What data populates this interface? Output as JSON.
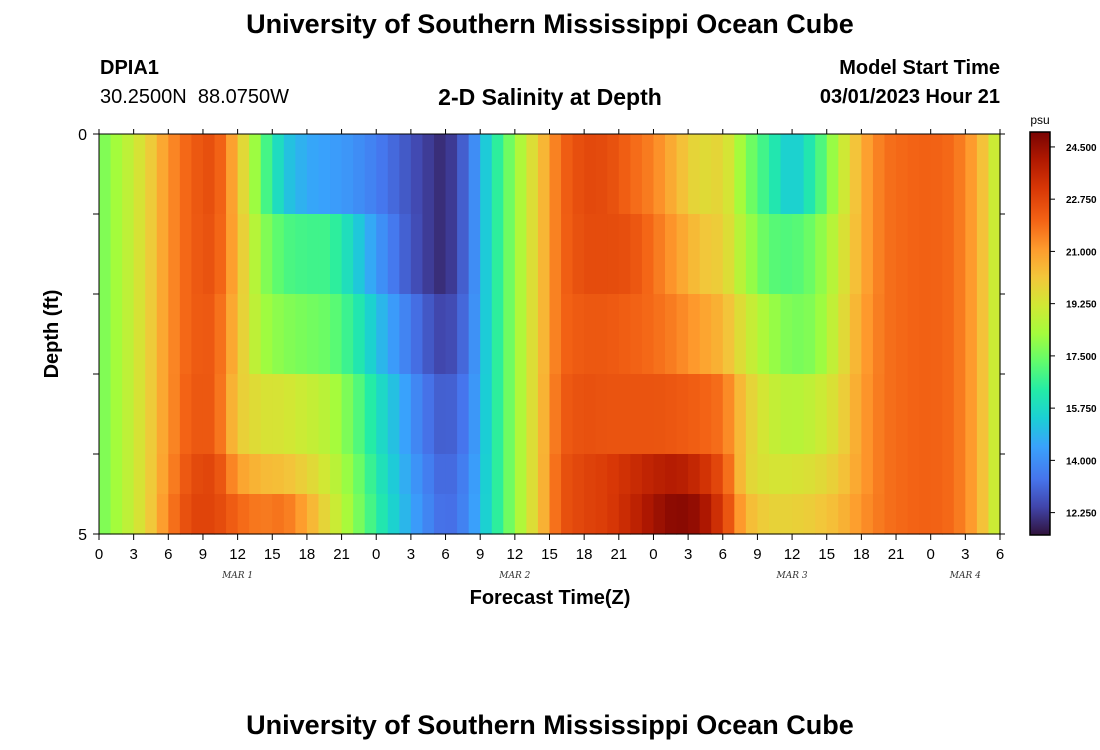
{
  "header": {
    "title": "University of Southern Mississippi Ocean Cube",
    "station_id": "DPIA1",
    "coords": "30.2500N  88.0750W",
    "chart_title": "2-D Salinity at Depth",
    "model_label": "Model Start Time",
    "model_time": "03/01/2023 Hour 21"
  },
  "footer": {
    "title": "University of Southern Mississippi Ocean Cube"
  },
  "chart_data": {
    "type": "heatmap",
    "title": "2-D Salinity at Depth",
    "xlabel": "Forecast Time(Z)",
    "ylabel": "Depth (ft)",
    "x_tick_labels": [
      "0",
      "3",
      "6",
      "9",
      "12",
      "15",
      "18",
      "21",
      "0",
      "3",
      "6",
      "9",
      "12",
      "15",
      "18",
      "21",
      "0",
      "3",
      "6",
      "9",
      "12",
      "15",
      "18",
      "21",
      "0",
      "3",
      "6"
    ],
    "x_tick_hours": [
      0,
      3,
      6,
      9,
      12,
      15,
      18,
      21,
      24,
      27,
      30,
      33,
      36,
      39,
      42,
      45,
      48,
      51,
      54,
      57,
      60,
      63,
      66,
      69,
      72,
      75,
      78
    ],
    "month_labels": [
      {
        "text": "MAR 1",
        "hour": 12
      },
      {
        "text": "MAR 2",
        "hour": 36
      },
      {
        "text": "MAR 3",
        "hour": 60
      },
      {
        "text": "MAR 4",
        "hour": 75
      }
    ],
    "y_tick_labels": [
      "0",
      "5"
    ],
    "depth_range": [
      0,
      5
    ],
    "hours_range": [
      0,
      78
    ],
    "colorbar": {
      "unit": "psu",
      "min": 11.5,
      "max": 25.0,
      "ticks": [
        "24.500",
        "22.750",
        "21.000",
        "19.250",
        "17.500",
        "15.750",
        "14.000",
        "12.250"
      ],
      "tick_values": [
        24.5,
        22.75,
        21.0,
        19.25,
        17.5,
        15.75,
        14.0,
        12.25
      ]
    },
    "layer_depths": [
      0.25,
      1.25,
      2.25,
      3.25,
      4.25,
      4.75
    ],
    "key_hours": [
      0,
      2,
      4,
      6,
      8,
      10,
      12,
      14,
      16,
      18,
      20,
      22,
      24,
      26,
      28,
      30,
      32,
      34,
      36,
      38,
      40,
      42,
      44,
      46,
      48,
      50,
      52,
      54,
      56,
      58,
      60,
      62,
      64,
      66,
      68,
      70,
      72,
      74,
      76,
      78
    ],
    "layers": [
      [
        17.5,
        18.5,
        19.6,
        21.2,
        22.2,
        22.6,
        20.4,
        17.4,
        15.3,
        14.6,
        14.4,
        14.1,
        13.6,
        13.0,
        12.4,
        11.9,
        13.3,
        16.0,
        18.0,
        20.0,
        22.0,
        22.7,
        22.6,
        22.0,
        21.5,
        20.5,
        19.5,
        19.8,
        17.8,
        16.5,
        15.2,
        16.5,
        18.6,
        20.7,
        21.8,
        22.0,
        22.1,
        21.9,
        20.8,
        18.5
      ],
      [
        17.5,
        18.5,
        19.6,
        21.2,
        22.2,
        22.5,
        20.5,
        18.0,
        17.0,
        16.8,
        16.8,
        15.6,
        14.3,
        13.2,
        12.4,
        11.9,
        13.3,
        16.0,
        18.0,
        20.0,
        22.0,
        22.6,
        22.6,
        22.5,
        21.8,
        21.0,
        20.2,
        19.9,
        18.3,
        17.2,
        17.0,
        17.6,
        19.0,
        20.7,
        21.8,
        22.0,
        22.1,
        21.9,
        20.8,
        18.5
      ],
      [
        17.5,
        18.5,
        19.6,
        21.2,
        22.2,
        22.3,
        20.3,
        18.3,
        17.8,
        17.6,
        17.4,
        16.5,
        15.2,
        14.0,
        13.0,
        12.3,
        13.4,
        16.0,
        18.0,
        20.0,
        22.0,
        22.3,
        22.3,
        22.1,
        21.9,
        21.5,
        21.0,
        20.5,
        19.2,
        18.2,
        17.6,
        17.8,
        19.2,
        20.9,
        21.8,
        22.0,
        22.1,
        21.9,
        20.8,
        18.5
      ],
      [
        17.5,
        18.5,
        19.6,
        21.2,
        22.3,
        22.3,
        20.0,
        19.4,
        19.3,
        19.0,
        18.6,
        17.4,
        16.0,
        14.8,
        13.5,
        12.8,
        13.6,
        16.0,
        18.0,
        20.0,
        22.2,
        22.5,
        22.4,
        22.4,
        22.4,
        22.3,
        22.1,
        21.8,
        20.0,
        19.0,
        18.6,
        18.9,
        19.6,
        21.0,
        21.8,
        22.0,
        22.1,
        21.9,
        20.8,
        18.5
      ],
      [
        17.5,
        18.5,
        19.6,
        21.3,
        22.6,
        22.8,
        21.0,
        20.4,
        20.3,
        19.8,
        19.0,
        17.8,
        16.3,
        15.0,
        13.8,
        13.0,
        13.8,
        16.0,
        18.0,
        20.0,
        22.4,
        22.8,
        23.0,
        23.4,
        23.8,
        24.0,
        23.5,
        22.5,
        19.8,
        19.3,
        19.3,
        19.5,
        20.0,
        21.0,
        21.8,
        22.0,
        22.1,
        21.9,
        20.8,
        18.5
      ],
      [
        17.5,
        18.5,
        19.6,
        21.5,
        22.8,
        22.8,
        22.0,
        21.6,
        21.8,
        20.8,
        19.4,
        18.0,
        16.5,
        15.2,
        14.0,
        13.1,
        13.9,
        16.0,
        18.0,
        20.0,
        22.4,
        22.8,
        23.0,
        23.6,
        24.3,
        24.8,
        24.5,
        23.0,
        20.5,
        19.8,
        19.8,
        20.0,
        20.4,
        21.2,
        21.8,
        22.0,
        22.1,
        21.9,
        20.8,
        18.5
      ]
    ]
  }
}
